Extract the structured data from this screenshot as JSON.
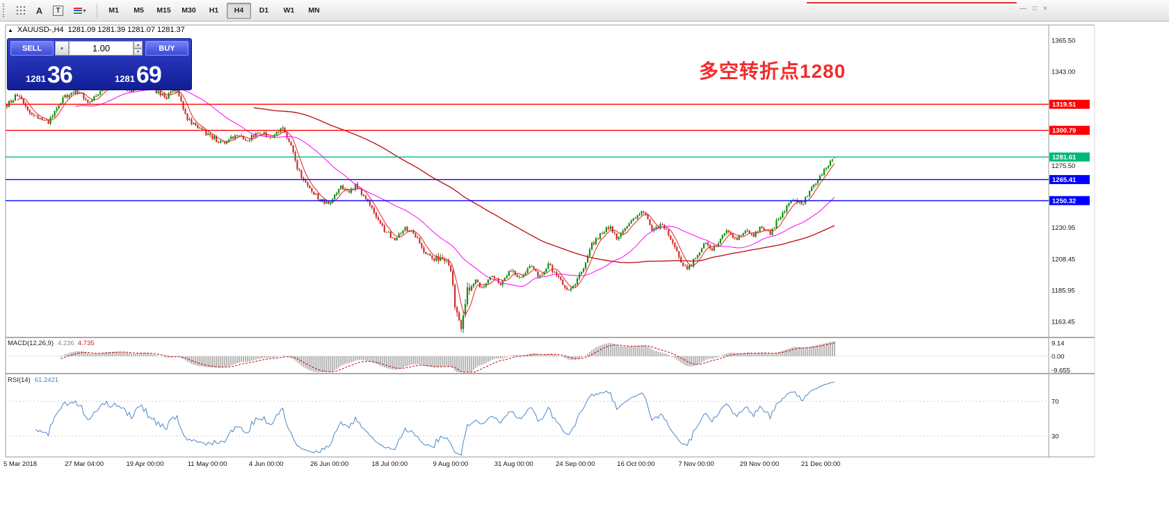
{
  "toolbar": {
    "icon_a": "A",
    "icon_t": "T",
    "caret": "▾",
    "timeframes": [
      {
        "label": "M1"
      },
      {
        "label": "M5"
      },
      {
        "label": "M15"
      },
      {
        "label": "M30"
      },
      {
        "label": "H1"
      },
      {
        "label": "H4",
        "active": true
      },
      {
        "label": "D1"
      },
      {
        "label": "W1"
      },
      {
        "label": "MN"
      }
    ],
    "window_controls": [
      "—",
      "□",
      "×"
    ]
  },
  "header": {
    "arrow": "▲",
    "title": "XAUUSD-,H4",
    "ohlc": "1281.09 1281.39 1281.07 1281.37"
  },
  "trade_panel": {
    "sell_label": "SELL",
    "buy_label": "BUY",
    "volume": "1.00",
    "combo_caret": "▾",
    "spinner_up": "▴",
    "spinner_down": "▾",
    "sell_price_main": "1281",
    "sell_price_big": "36",
    "buy_price_main": "1281",
    "buy_price_big": "69"
  },
  "annotation": {
    "text": "多空转折点1280",
    "color": "#f32b2b"
  },
  "chart_data": {
    "type": "candlestick",
    "symbol": "XAUUSD-",
    "timeframe": "H4",
    "last_candle": {
      "open": 1281.09,
      "high": 1281.39,
      "low": 1281.07,
      "close": 1281.37
    },
    "y_axis": {
      "ticks": [
        "1365.50",
        "1343.00",
        "1275.50",
        "1230.95",
        "1208.45",
        "1185.95",
        "1163.45"
      ]
    },
    "x_axis": {
      "labels": [
        "5 Mar 2018",
        "27 Mar 04:00",
        "19 Apr 00:00",
        "11 May 00:00",
        "4 Jun 00:00",
        "26 Jun 00:00",
        "18 Jul 00:00",
        "9 Aug 00:00",
        "31 Aug 00:00",
        "24 Sep 00:00",
        "16 Oct 00:00",
        "7 Nov 00:00",
        "29 Nov 00:00",
        "21 Dec 00:00"
      ]
    },
    "horizontal_lines": [
      {
        "price": 1319.51,
        "label": "1319.51",
        "color": "#ff0000"
      },
      {
        "price": 1300.79,
        "label": "1300.79",
        "color": "#ff0000"
      },
      {
        "price": 1281.61,
        "label": "1281.61",
        "color": "#00b876"
      },
      {
        "price": 1265.41,
        "label": "1265.41",
        "color": "#0000ff"
      },
      {
        "price": 1250.32,
        "label": "1250.32",
        "color": "#0000ff"
      }
    ],
    "candles": {
      "count": 400,
      "up_color": "#0e8f0e",
      "down_color": "#d02a2a"
    },
    "moving_averages": [
      {
        "period": 6,
        "color": "#e02020",
        "width": 1
      },
      {
        "period": 34,
        "color": "#ff00ff",
        "width": 1
      },
      {
        "period": 120,
        "color": "#c01818",
        "width": 1.4
      }
    ],
    "price_path": [
      [
        0.0,
        1319
      ],
      [
        0.012,
        1326
      ],
      [
        0.03,
        1312
      ],
      [
        0.05,
        1306
      ],
      [
        0.068,
        1324
      ],
      [
        0.085,
        1329
      ],
      [
        0.1,
        1321
      ],
      [
        0.118,
        1331
      ],
      [
        0.135,
        1334
      ],
      [
        0.15,
        1329
      ],
      [
        0.163,
        1336
      ],
      [
        0.178,
        1330
      ],
      [
        0.192,
        1324
      ],
      [
        0.205,
        1331
      ],
      [
        0.218,
        1309
      ],
      [
        0.232,
        1302
      ],
      [
        0.248,
        1296
      ],
      [
        0.262,
        1291
      ],
      [
        0.275,
        1297
      ],
      [
        0.29,
        1294
      ],
      [
        0.305,
        1299
      ],
      [
        0.32,
        1296
      ],
      [
        0.332,
        1303
      ],
      [
        0.342,
        1291
      ],
      [
        0.352,
        1272
      ],
      [
        0.365,
        1259
      ],
      [
        0.378,
        1251
      ],
      [
        0.39,
        1247
      ],
      [
        0.403,
        1261
      ],
      [
        0.413,
        1256
      ],
      [
        0.422,
        1262
      ],
      [
        0.433,
        1251
      ],
      [
        0.443,
        1243
      ],
      [
        0.455,
        1230
      ],
      [
        0.468,
        1223
      ],
      [
        0.48,
        1231
      ],
      [
        0.493,
        1226
      ],
      [
        0.503,
        1215
      ],
      [
        0.515,
        1208
      ],
      [
        0.527,
        1213
      ],
      [
        0.536,
        1199
      ],
      [
        0.544,
        1167
      ],
      [
        0.549,
        1162
      ],
      [
        0.556,
        1185
      ],
      [
        0.565,
        1193
      ],
      [
        0.575,
        1186
      ],
      [
        0.586,
        1198
      ],
      [
        0.597,
        1190
      ],
      [
        0.608,
        1202
      ],
      [
        0.62,
        1195
      ],
      [
        0.632,
        1203
      ],
      [
        0.643,
        1196
      ],
      [
        0.655,
        1204
      ],
      [
        0.666,
        1195
      ],
      [
        0.677,
        1185
      ],
      [
        0.687,
        1192
      ],
      [
        0.697,
        1201
      ],
      [
        0.707,
        1219
      ],
      [
        0.718,
        1227
      ],
      [
        0.728,
        1232
      ],
      [
        0.738,
        1223
      ],
      [
        0.748,
        1230
      ],
      [
        0.76,
        1239
      ],
      [
        0.77,
        1242
      ],
      [
        0.78,
        1229
      ],
      [
        0.79,
        1233
      ],
      [
        0.8,
        1226
      ],
      [
        0.812,
        1209
      ],
      [
        0.822,
        1200
      ],
      [
        0.832,
        1209
      ],
      [
        0.842,
        1220
      ],
      [
        0.852,
        1214
      ],
      [
        0.862,
        1223
      ],
      [
        0.872,
        1229
      ],
      [
        0.882,
        1221
      ],
      [
        0.892,
        1230
      ],
      [
        0.902,
        1225
      ],
      [
        0.912,
        1232
      ],
      [
        0.922,
        1227
      ],
      [
        0.932,
        1237
      ],
      [
        0.942,
        1246
      ],
      [
        0.952,
        1251
      ],
      [
        0.962,
        1249
      ],
      [
        0.972,
        1259
      ],
      [
        0.982,
        1267
      ],
      [
        0.992,
        1275
      ],
      [
        1.0,
        1281.2
      ]
    ],
    "indicators": {
      "macd": {
        "label": "MACD(12,26,9)",
        "value_main": "4.236",
        "value_signal": "4.735",
        "fast": 12,
        "slow": 26,
        "signal": 9,
        "ticks": [
          "9.14",
          "0.00",
          "-9.655"
        ],
        "histogram_color": "#b4b4b4",
        "signal_color": "#cc0000"
      },
      "rsi": {
        "label": "RSI(14)",
        "value": "61.2421",
        "period": 14,
        "levels": [
          "70",
          "30"
        ],
        "color": "#4a86c8"
      }
    }
  }
}
